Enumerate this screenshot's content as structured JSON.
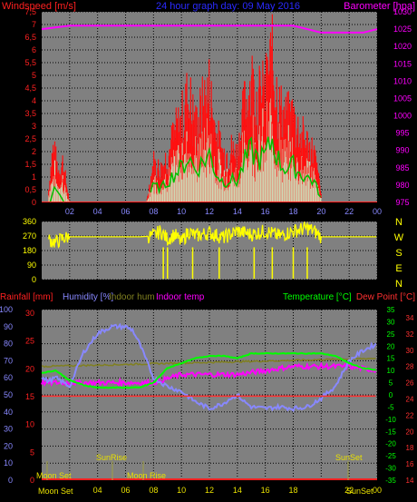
{
  "top_panel": {
    "title": "24 hour graph day: 09 May 2016",
    "left_axis_label": "Windspeed [m/s]",
    "right_axis_label": "Barometer [hpa]",
    "colors": {
      "windspeed": "#ff1010",
      "gust_light": "#c8f0c8",
      "avg_green": "#00c000",
      "barometer": "#ff00ff",
      "title": "#2a2aff"
    }
  },
  "mid_panel": {
    "compass": [
      "N",
      "W",
      "S",
      "E",
      "N"
    ],
    "colors": {
      "direction": "#ffff00",
      "compass": "#ffff00"
    }
  },
  "bottom_panel": {
    "labels": {
      "rainfall": "Rainfall [mm]",
      "humidity": "Humidity [%]",
      "indoor_hum": "Indoor hum",
      "indoor_temp": "Indoor temp",
      "temperature": "Temperature [°C]",
      "dew_point": "Dew Point [°C]"
    },
    "annotations": {
      "moon_set_top": "Moon Set",
      "sunrise": "SunRise",
      "moon_rise": "Moon Rise",
      "sunset": "SunSet",
      "moon_set_axis": "Moon Set",
      "sunset_axis": "SunSet"
    },
    "colors": {
      "rainfall": "#ff2020",
      "humidity": "#8888ff",
      "indoor_hum": "#808020",
      "indoor_temp": "#ff00ff",
      "temperature": "#00ff00",
      "dew_point": "#ff3030"
    }
  },
  "chart_data": [
    {
      "type": "line",
      "title": "24 hour graph day: 09 May 2016",
      "x_ticks": [
        "02",
        "04",
        "06",
        "08",
        "10",
        "12",
        "14",
        "16",
        "18",
        "20",
        "22",
        "00"
      ],
      "xlim": [
        0,
        24
      ],
      "left_ticks": [
        "0",
        "0,5",
        "1",
        "1,5",
        "2",
        "2,5",
        "3",
        "3,5",
        "4",
        "4,5",
        "5",
        "5,5",
        "6",
        "6,5",
        "7",
        "7,5"
      ],
      "ylim_left": [
        0,
        7.5
      ],
      "right_ticks": [
        "975",
        "980",
        "985",
        "990",
        "995",
        "1000",
        "1005",
        "1010",
        "1015",
        "1020",
        "1025",
        "1030"
      ],
      "ylim_right": [
        975,
        1030
      ],
      "series": [
        {
          "name": "Windspeed [m/s]",
          "x": [
            0.5,
            0.8,
            1.2,
            1.5,
            1.8,
            2.0,
            7.5,
            8.0,
            8.5,
            9.0,
            9.5,
            10.0,
            10.5,
            11.0,
            11.5,
            12.0,
            12.5,
            13.0,
            13.5,
            14.0,
            14.5,
            15.0,
            15.5,
            16.0,
            16.5,
            17.0,
            17.5,
            18.0,
            18.5,
            19.0,
            19.5,
            20.0
          ],
          "values": [
            0.5,
            2.0,
            1.2,
            1.5,
            0.6,
            0,
            0,
            1.5,
            1.2,
            1.8,
            2.5,
            3.0,
            4.0,
            2.8,
            3.5,
            4.2,
            2.5,
            1.8,
            2.0,
            1.8,
            3.5,
            4.5,
            3.8,
            4.0,
            5.5,
            3.5,
            3.0,
            3.2,
            2.5,
            2.2,
            1.8,
            0.3
          ]
        },
        {
          "name": "Barometer [hpa]",
          "x": [
            0,
            2,
            4,
            6,
            8,
            10,
            12,
            14,
            16,
            18,
            19,
            20,
            21,
            22,
            23,
            24
          ],
          "values": [
            1025,
            1026,
            1026,
            1026,
            1026,
            1026,
            1026,
            1026,
            1026,
            1026,
            1025,
            1024,
            1024,
            1024,
            1024,
            1025
          ]
        }
      ]
    },
    {
      "type": "line",
      "y_ticks": [
        "0",
        "90",
        "180",
        "270",
        "360"
      ],
      "ylim": [
        0,
        360
      ],
      "compass_labels": [
        "N",
        "W",
        "S",
        "E",
        "N"
      ],
      "series": [
        {
          "name": "Wind direction",
          "x": [
            0.5,
            1.0,
            1.5,
            2.0,
            3.0,
            5.0,
            7.0,
            8.0,
            8.5,
            9.0,
            9.5,
            10.0,
            10.5,
            11.0,
            12.0,
            13.0,
            14.0,
            15.0,
            16.0,
            17.0,
            18.0,
            19.0,
            19.5,
            20.0,
            21.0,
            22.0,
            24.0
          ],
          "values": [
            250,
            230,
            255,
            265,
            265,
            265,
            265,
            270,
            300,
            250,
            280,
            230,
            300,
            270,
            290,
            260,
            300,
            280,
            300,
            270,
            300,
            320,
            300,
            265,
            265,
            265,
            265
          ]
        }
      ]
    },
    {
      "type": "line",
      "x_ticks": [
        "02",
        "04",
        "06",
        "08",
        "10",
        "12",
        "14",
        "16",
        "18",
        "20",
        "22",
        "00"
      ],
      "xlim": [
        0,
        24
      ],
      "y_left_humidity_ticks": [
        "0",
        "10",
        "20",
        "30",
        "40",
        "50",
        "60",
        "70",
        "80",
        "90",
        "100"
      ],
      "y_left_rain_ticks": [
        "0",
        "5",
        "10",
        "15",
        "20",
        "25",
        "30"
      ],
      "y_right_temp_ticks": [
        "-35",
        "-30",
        "-25",
        "-20",
        "-15",
        "-10",
        "-5",
        "0",
        "5",
        "10",
        "15",
        "20",
        "25",
        "30",
        "35"
      ],
      "y_right_indoor_ticks": [
        "14",
        "16",
        "18",
        "20",
        "22",
        "24",
        "26",
        "28",
        "30",
        "32",
        "34"
      ],
      "ylim_humidity": [
        0,
        100
      ],
      "ylim_temp": [
        -35,
        35
      ],
      "ylim_indoor": [
        14,
        35
      ],
      "series": [
        {
          "name": "Humidity [%]",
          "x": [
            0,
            0.5,
            1.0,
            2.0,
            3.0,
            4.0,
            5.0,
            6.0,
            6.5,
            7.0,
            7.5,
            8.0,
            9.0,
            10.0,
            11.0,
            12.0,
            13.0,
            13.5,
            14.0,
            14.5,
            15.0,
            16.0,
            17.0,
            18.0,
            19.0,
            20.0,
            21.0,
            22.0,
            23.0,
            24.0
          ],
          "values": [
            60,
            58,
            60,
            55,
            75,
            86,
            90,
            90,
            88,
            80,
            70,
            60,
            55,
            52,
            46,
            42,
            45,
            48,
            50,
            46,
            43,
            42,
            43,
            42,
            43,
            48,
            55,
            70,
            76,
            80
          ]
        },
        {
          "name": "Temperature [°C]",
          "x": [
            0,
            1.0,
            2.0,
            3.0,
            4.0,
            5.0,
            6.0,
            7.0,
            8.0,
            9.0,
            10.0,
            11.0,
            12.0,
            13.0,
            14.0,
            15.0,
            16.0,
            17.0,
            18.0,
            19.0,
            20.0,
            21.0,
            22.0,
            23.0,
            24.0
          ],
          "values": [
            9,
            10,
            6,
            4,
            3,
            3,
            3,
            3,
            5,
            11,
            13,
            15,
            16,
            16,
            15,
            17,
            17,
            17,
            17,
            17,
            17,
            16,
            13,
            11,
            10
          ]
        },
        {
          "name": "Dew Point [°C]",
          "x": [
            0,
            24
          ],
          "values": [
            -0.5,
            -0.5
          ]
        },
        {
          "name": "Indoor temp",
          "x": [
            0,
            2,
            4,
            6,
            8,
            10,
            12,
            14,
            16,
            18,
            20,
            22,
            24
          ],
          "values": [
            26,
            26,
            26,
            26,
            26,
            27,
            27,
            27,
            27.5,
            28,
            28,
            28,
            27.5
          ]
        },
        {
          "name": "Indoor hum",
          "x": [
            0,
            24
          ],
          "values": [
            28,
            29
          ]
        },
        {
          "name": "Rainfall [mm]",
          "x": [
            0,
            24
          ],
          "values": [
            0,
            0
          ]
        }
      ]
    }
  ]
}
